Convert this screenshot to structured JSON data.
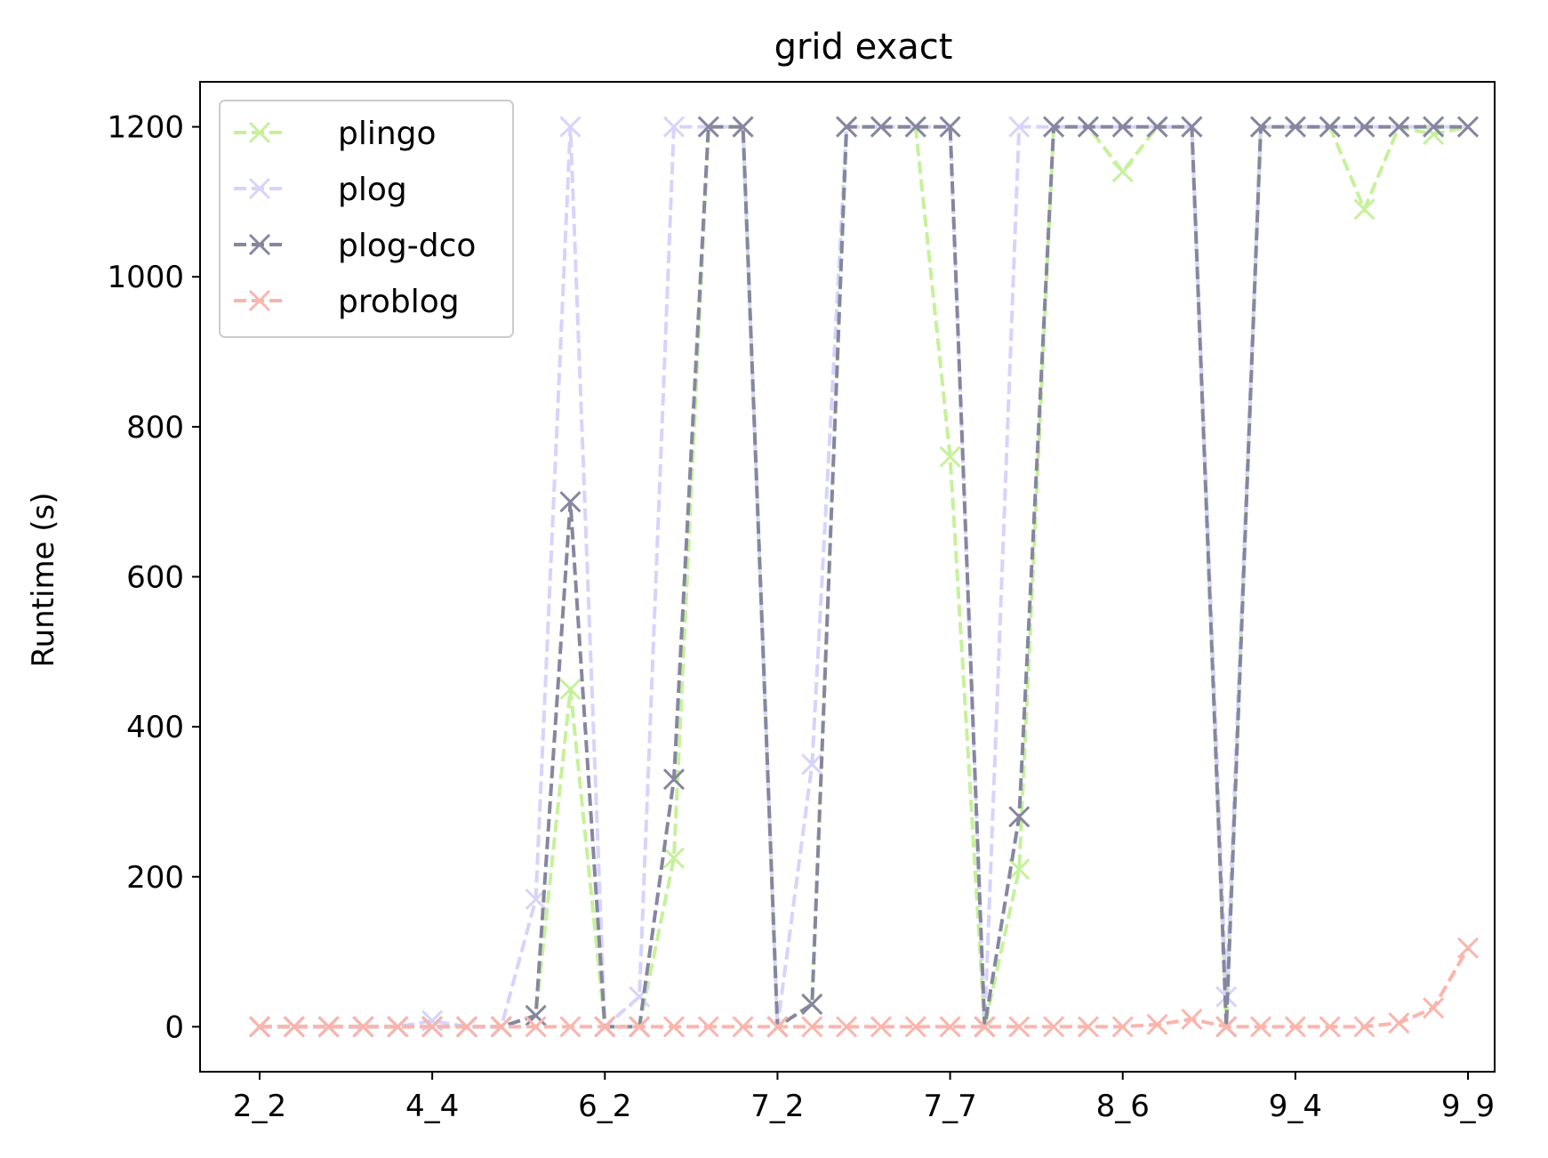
{
  "chart_data": {
    "type": "line",
    "title": "grid exact",
    "xlabel": "",
    "ylabel": "Runtime (s)",
    "ylim": [
      -60,
      1260
    ],
    "yticks": [
      0,
      200,
      400,
      600,
      800,
      1000,
      1200
    ],
    "categories": [
      "2_2",
      "",
      "",
      "",
      "",
      "4_4",
      "",
      "",
      "",
      "",
      "6_2",
      "",
      "",
      "",
      "",
      "7_2",
      "",
      "",
      "",
      "",
      "7_7",
      "",
      "",
      "",
      "",
      "8_6",
      "",
      "",
      "",
      "",
      "9_4",
      "",
      "",
      "",
      "",
      "9_9"
    ],
    "xtick_labels": [
      "2_2",
      "4_4",
      "6_2",
      "7_2",
      "7_7",
      "8_6",
      "9_4",
      "9_9"
    ],
    "legend_position": "top-left",
    "grid": false,
    "series": [
      {
        "name": "plingo",
        "color": "#c6f19b",
        "values": [
          0,
          0,
          0,
          0,
          0,
          0,
          0,
          0,
          15,
          450,
          0,
          0,
          225,
          1200,
          1200,
          0,
          30,
          1200,
          1200,
          1200,
          760,
          0,
          210,
          1200,
          1200,
          1140,
          1200,
          1200,
          0,
          1200,
          1200,
          1200,
          1090,
          1200,
          1190,
          1200
        ]
      },
      {
        "name": "plog",
        "color": "#d6d4fc",
        "values": [
          0,
          0,
          0,
          0,
          0,
          8,
          0,
          0,
          170,
          1200,
          0,
          40,
          1200,
          1200,
          1200,
          0,
          350,
          1200,
          1200,
          1200,
          1200,
          0,
          1200,
          1200,
          1200,
          1200,
          1200,
          1200,
          40,
          1200,
          1200,
          1200,
          1200,
          1200,
          1200,
          1200
        ]
      },
      {
        "name": "plog-dco",
        "color": "#8686a0",
        "values": [
          0,
          0,
          0,
          0,
          0,
          0,
          0,
          0,
          15,
          700,
          0,
          0,
          330,
          1200,
          1200,
          0,
          30,
          1200,
          1200,
          1200,
          1200,
          0,
          280,
          1200,
          1200,
          1200,
          1200,
          1200,
          0,
          1200,
          1200,
          1200,
          1200,
          1200,
          1200,
          1200
        ]
      },
      {
        "name": "problog",
        "color": "#fbb5ac",
        "values": [
          0,
          0,
          0,
          0,
          0,
          0,
          0,
          0,
          0,
          0,
          0,
          0,
          0,
          0,
          0,
          0,
          0,
          0,
          0,
          0,
          0,
          0,
          0,
          0,
          0,
          0,
          3,
          10,
          0,
          0,
          0,
          0,
          0,
          5,
          25,
          105
        ]
      }
    ]
  }
}
